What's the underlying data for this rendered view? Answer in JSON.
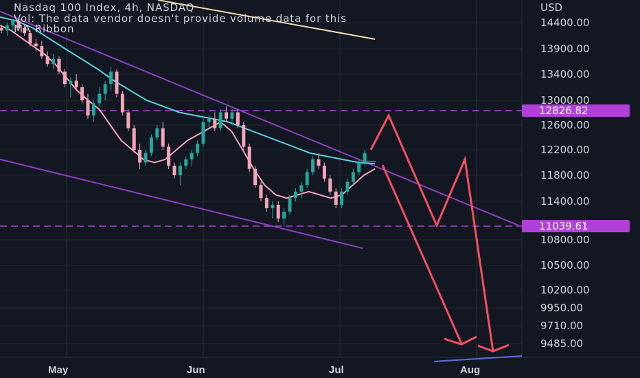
{
  "legend": {
    "title": "Nasdaq 100 Index, 4h, NASDAQ",
    "volume_note": "Vol: The data vendor doesn't provide volume data for this",
    "indicator": "MA Ribbon"
  },
  "axis": {
    "currency": "USD"
  },
  "colors": {
    "background": "#131722",
    "candle_up": "#26a69a",
    "candle_down": "#f4a6b9",
    "ma_fast": "#f3a3b8",
    "ma_slow": "#5fd3e0",
    "trendline": "#8c3fbf",
    "forecast": "#f44f5e",
    "level_badge": "#b040d8",
    "axis_text": "#d1d4dc"
  },
  "chart_data": {
    "type": "line",
    "title": "Nasdaq 100 Index, 4h, NASDAQ",
    "ylabel": "USD",
    "y_scale": "log",
    "ylim": [
      9300,
      14900
    ],
    "y_ticks": [
      14400,
      13900,
      13400,
      13000,
      12600,
      12200,
      11800,
      11400,
      11039.61,
      10800,
      10500,
      10200,
      9950,
      9710,
      9485
    ],
    "y_tick_labels": [
      "14400.00",
      "13900.00",
      "13400.00",
      "13000.00",
      "12600.00",
      "12200.00",
      "11800.00",
      "11400.00",
      "11039.61",
      "10800.00",
      "10500.00",
      "10200.00",
      "9950.00",
      "9710.00",
      "9485.00"
    ],
    "x_tick_labels": [
      "May",
      "Jun",
      "Jul",
      "Aug"
    ],
    "horizontal_levels": [
      {
        "label": "12826.82",
        "value": 12826.82
      },
      {
        "label": "11039.61",
        "value": 11039.61
      }
    ],
    "series": [
      {
        "kind": "ohlc",
        "values": [
          [
            14300,
            14350,
            14200,
            14250
          ],
          [
            14250,
            14400,
            14150,
            14350
          ],
          [
            14350,
            14500,
            14250,
            14450
          ],
          [
            14450,
            14480,
            14250,
            14300
          ],
          [
            14300,
            14380,
            14150,
            14200
          ],
          [
            14200,
            14250,
            13950,
            14000
          ],
          [
            14000,
            14100,
            13850,
            13950
          ],
          [
            13950,
            14050,
            13700,
            13750
          ],
          [
            13750,
            13850,
            13550,
            13600
          ],
          [
            13600,
            13800,
            13500,
            13700
          ],
          [
            13700,
            13750,
            13400,
            13450
          ],
          [
            13450,
            13500,
            13200,
            13250
          ],
          [
            13250,
            13350,
            13050,
            13300
          ],
          [
            13300,
            13400,
            13150,
            13200
          ],
          [
            13200,
            13250,
            12950,
            13000
          ],
          [
            13000,
            13100,
            12700,
            12750
          ],
          [
            12750,
            13000,
            12650,
            12950
          ],
          [
            12950,
            13200,
            12900,
            13100
          ],
          [
            13100,
            13300,
            13000,
            13250
          ],
          [
            13250,
            13550,
            13150,
            13450
          ],
          [
            13450,
            13500,
            13050,
            13100
          ],
          [
            13100,
            13150,
            12750,
            12800
          ],
          [
            12800,
            12850,
            12500,
            12550
          ],
          [
            12550,
            12600,
            12150,
            12200
          ],
          [
            12200,
            12300,
            11900,
            12000
          ],
          [
            12000,
            12200,
            11950,
            12150
          ],
          [
            12150,
            12450,
            12100,
            12400
          ],
          [
            12400,
            12600,
            12350,
            12550
          ],
          [
            12550,
            12650,
            12200,
            12250
          ],
          [
            12250,
            12300,
            11900,
            11950
          ],
          [
            11950,
            12000,
            11750,
            11800
          ],
          [
            11800,
            12000,
            11650,
            11950
          ],
          [
            11950,
            12100,
            11900,
            12050
          ],
          [
            12050,
            12200,
            11950,
            12150
          ],
          [
            12150,
            12350,
            12100,
            12300
          ],
          [
            12300,
            12700,
            12250,
            12650
          ],
          [
            12650,
            12750,
            12550,
            12700
          ],
          [
            12700,
            12800,
            12500,
            12550
          ],
          [
            12550,
            12850,
            12500,
            12800
          ],
          [
            12800,
            12900,
            12650,
            12700
          ],
          [
            12700,
            12850,
            12600,
            12800
          ],
          [
            12800,
            12850,
            12550,
            12600
          ],
          [
            12600,
            12650,
            12200,
            12250
          ],
          [
            12250,
            12300,
            11850,
            11900
          ],
          [
            11900,
            11950,
            11600,
            11650
          ],
          [
            11650,
            11700,
            11400,
            11450
          ],
          [
            11450,
            11500,
            11250,
            11300
          ],
          [
            11300,
            11400,
            11150,
            11350
          ],
          [
            11350,
            11400,
            11100,
            11150
          ],
          [
            11150,
            11300,
            11050,
            11250
          ],
          [
            11250,
            11500,
            11200,
            11450
          ],
          [
            11450,
            11600,
            11400,
            11550
          ],
          [
            11550,
            11700,
            11450,
            11650
          ],
          [
            11650,
            11900,
            11600,
            11850
          ],
          [
            11850,
            12100,
            11800,
            12050
          ],
          [
            12050,
            12150,
            11900,
            11950
          ],
          [
            11950,
            12000,
            11700,
            11750
          ],
          [
            11750,
            11800,
            11500,
            11550
          ],
          [
            11550,
            11600,
            11300,
            11350
          ],
          [
            11350,
            11600,
            11300,
            11550
          ],
          [
            11550,
            11750,
            11500,
            11700
          ],
          [
            11700,
            11900,
            11650,
            11850
          ],
          [
            11850,
            12050,
            11800,
            12000
          ],
          [
            12000,
            12200,
            11950,
            12150
          ]
        ]
      },
      {
        "name": "",
        "kind": "ma_fast",
        "values": [
          14350,
          14250,
          14100,
          13950,
          13800,
          13600,
          13350,
          13150,
          13000,
          12850,
          12600,
          12350,
          12200,
          12050,
          12000,
          12050,
          12200,
          12350,
          12450,
          12550,
          12650,
          12500,
          12200,
          11900,
          11650,
          11500,
          11450,
          11500,
          11550,
          11500,
          11450,
          11500,
          11650,
          11800,
          11900
        ]
      },
      {
        "name": "",
        "kind": "ma_slow",
        "values": [
          14550,
          14450,
          14300,
          14100,
          13900,
          13700,
          13500,
          13300,
          13150,
          13000,
          12900,
          12800,
          12750,
          12700,
          12650,
          12550,
          12450,
          12350,
          12250,
          12150,
          12100,
          12050,
          12000,
          11980
        ]
      },
      {
        "name": "",
        "kind": "trendline_upper",
        "values": [
          [
            0,
            14700
          ],
          [
            100,
            11050
          ]
        ]
      },
      {
        "name": "",
        "kind": "trendline_lower",
        "values": [
          [
            0,
            12050
          ],
          [
            70,
            10700
          ]
        ]
      },
      {
        "name": "",
        "kind": "forecast_path",
        "values": [
          12200,
          12750,
          11050,
          12050,
          9450
        ]
      }
    ]
  }
}
